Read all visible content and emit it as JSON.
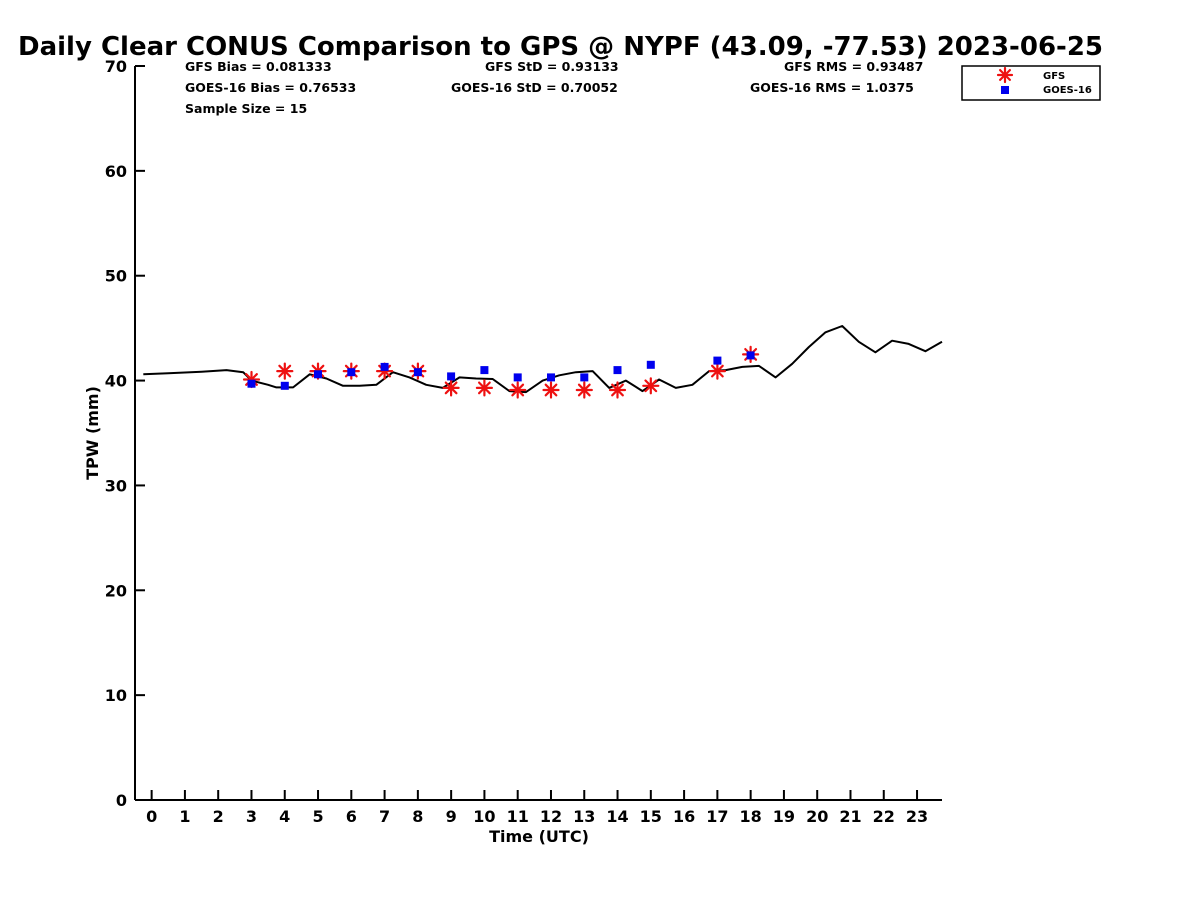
{
  "chart_data": {
    "type": "scatter",
    "title": "Daily Clear CONUS Comparison to GPS @ NYPF (43.09, -77.53) 2023-06-25",
    "xlabel": "Time (UTC)",
    "ylabel": "TPW (mm)",
    "xlim": [
      -0.5,
      23.75
    ],
    "ylim": [
      0,
      70
    ],
    "x_ticks": [
      0,
      1,
      2,
      3,
      4,
      5,
      6,
      7,
      8,
      9,
      10,
      11,
      12,
      13,
      14,
      15,
      16,
      17,
      18,
      19,
      20,
      21,
      22,
      23
    ],
    "y_ticks": [
      0,
      10,
      20,
      30,
      40,
      50,
      60,
      70
    ],
    "grid": false,
    "legend_position": "top-right, outside plot",
    "stats": {
      "gfs_bias": "GFS Bias = 0.081333",
      "goes_bias": "GOES-16 Bias = 0.76533",
      "sample_size": "Sample Size = 15",
      "gfs_std": "GFS StD = 0.93133",
      "goes_std": "GOES-16 StD = 0.70052",
      "gfs_rms": "GFS RMS = 0.93487",
      "goes_rms": "GOES-16 RMS = 1.0375"
    },
    "series": [
      {
        "role": "gps-reference-line",
        "color": "#000000",
        "points": [
          [
            -0.25,
            40.6
          ],
          [
            0.5,
            40.7
          ],
          [
            1.5,
            40.85
          ],
          [
            2.25,
            41.0
          ],
          [
            2.75,
            40.8
          ],
          [
            3.0,
            40.0
          ],
          [
            3.5,
            39.6
          ],
          [
            3.75,
            39.35
          ],
          [
            4.25,
            39.35
          ],
          [
            4.75,
            40.6
          ],
          [
            5.25,
            40.2
          ],
          [
            5.75,
            39.5
          ],
          [
            6.25,
            39.5
          ],
          [
            6.75,
            39.6
          ],
          [
            7.25,
            40.8
          ],
          [
            7.75,
            40.3
          ],
          [
            8.25,
            39.6
          ],
          [
            8.75,
            39.3
          ],
          [
            9.25,
            40.3
          ],
          [
            9.75,
            40.2
          ],
          [
            10.25,
            40.15
          ],
          [
            10.75,
            39.0
          ],
          [
            11.25,
            38.9
          ],
          [
            11.75,
            40.0
          ],
          [
            12.25,
            40.5
          ],
          [
            12.75,
            40.8
          ],
          [
            13.25,
            40.9
          ],
          [
            13.75,
            39.3
          ],
          [
            14.25,
            40.0
          ],
          [
            14.75,
            39.0
          ],
          [
            15.25,
            40.1
          ],
          [
            15.75,
            39.3
          ],
          [
            16.25,
            39.6
          ],
          [
            16.75,
            40.9
          ],
          [
            17.25,
            41.0
          ],
          [
            17.75,
            41.3
          ],
          [
            18.25,
            41.4
          ],
          [
            18.75,
            40.3
          ],
          [
            19.25,
            41.6
          ],
          [
            19.75,
            43.2
          ],
          [
            20.25,
            44.6
          ],
          [
            20.75,
            45.2
          ],
          [
            21.25,
            43.7
          ],
          [
            21.75,
            42.7
          ],
          [
            22.25,
            43.8
          ],
          [
            22.75,
            43.5
          ],
          [
            23.25,
            42.8
          ],
          [
            23.75,
            43.7
          ]
        ]
      },
      {
        "name": "GFS",
        "color": "#ee1111",
        "marker": "asterisk",
        "x": [
          3,
          4,
          5,
          6,
          7,
          8,
          9,
          10,
          11,
          12,
          13,
          14,
          15,
          17,
          18
        ],
        "y": [
          40.1,
          40.9,
          40.9,
          40.9,
          40.9,
          40.9,
          39.3,
          39.3,
          39.1,
          39.1,
          39.1,
          39.1,
          39.5,
          40.9,
          42.5
        ]
      },
      {
        "name": "GOES-16",
        "color": "#0000ee",
        "marker": "square",
        "x": [
          3,
          4,
          5,
          6,
          7,
          8,
          9,
          10,
          11,
          12,
          13,
          14,
          15,
          17,
          18
        ],
        "y": [
          39.7,
          39.5,
          40.6,
          40.8,
          41.3,
          40.8,
          40.4,
          41.0,
          40.3,
          40.3,
          40.3,
          41.0,
          41.5,
          41.9,
          42.4
        ]
      }
    ]
  }
}
